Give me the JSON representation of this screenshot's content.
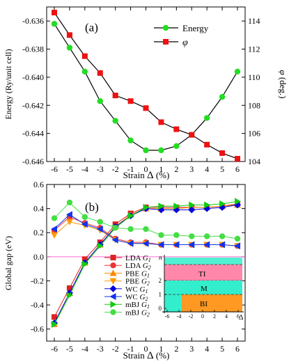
{
  "chart_data": [
    {
      "type": "line",
      "panel_label": "(a)",
      "x": [
        -6,
        -5,
        -4,
        -3,
        -2,
        -1,
        0,
        1,
        2,
        3,
        4,
        5,
        6
      ],
      "xlabel": "Strain",
      "xlabel_symbol": "Δ",
      "xlabel_unit": "(%)",
      "ylabel": "Energy (Ry/unit cell)",
      "y2label": "(deg.)",
      "y2label_symbol": "φ",
      "ylim": [
        -0.646,
        -0.635
      ],
      "yticks": [
        -0.646,
        -0.644,
        -0.642,
        -0.64,
        -0.638,
        -0.636
      ],
      "ytick_labels": [
        "-0.646",
        "-0.644",
        "-0.642",
        "-0.640",
        "-0.638",
        "-0.636"
      ],
      "y2lim": [
        104,
        115
      ],
      "y2ticks": [
        104,
        106,
        108,
        110,
        112,
        114
      ],
      "y2tick_labels": [
        "104",
        "106",
        "108",
        "110",
        "112",
        "114"
      ],
      "xtick_labels": [
        "-6",
        "-5",
        "-4",
        "-3",
        "-2",
        "-1",
        "0",
        "1",
        "2",
        "3",
        "4",
        "5",
        "6"
      ],
      "legend_position": "top-right",
      "series": [
        {
          "name": "Energy",
          "axis": "left",
          "color": "#22dd22",
          "marker": "circle",
          "values": [
            -0.6362,
            -0.6379,
            -0.6396,
            -0.6417,
            -0.6431,
            -0.6445,
            -0.6452,
            -0.6452,
            -0.6449,
            -0.6441,
            -0.6429,
            -0.6414,
            -0.6396
          ]
        },
        {
          "name": "φ",
          "axis": "right",
          "color": "#ee1111",
          "marker": "square",
          "values": [
            114.6,
            113.0,
            111.5,
            110.3,
            108.7,
            108.3,
            107.8,
            106.8,
            106.3,
            105.9,
            105.2,
            104.6,
            104.2
          ]
        }
      ]
    },
    {
      "type": "line",
      "panel_label": "(b)",
      "x": [
        -6,
        -5,
        -4,
        -3,
        -2,
        -1,
        0,
        1,
        2,
        3,
        4,
        5,
        6
      ],
      "xlabel": "Strain",
      "xlabel_symbol": "Δ",
      "xlabel_unit": "(%)",
      "ylabel": "Global gap (eV)",
      "ylim": [
        -0.7,
        0.6
      ],
      "yticks": [
        -0.6,
        -0.4,
        -0.2,
        0.0,
        0.2,
        0.4,
        0.6
      ],
      "ytick_labels": [
        "-0.6",
        "-0.4",
        "-0.2",
        "0.0",
        "0.2",
        "0.4",
        "0.6"
      ],
      "xtick_labels": [
        "-6",
        "-5",
        "-4",
        "-3",
        "-2",
        "-1",
        "0",
        "1",
        "2",
        "3",
        "4",
        "5",
        "6"
      ],
      "zero_line_color": "#ff66cc",
      "legend_position": "bottom-left",
      "series": [
        {
          "name": "LDA",
          "sub": "G",
          "idx": "1",
          "color": "#dd2222",
          "marker": "square",
          "values": [
            -0.5,
            -0.26,
            -0.02,
            0.12,
            0.27,
            0.36,
            0.41,
            0.41,
            0.41,
            0.41,
            0.41,
            0.42,
            0.44
          ]
        },
        {
          "name": "LDA",
          "sub": "G",
          "idx": "2",
          "color": "#ee3333",
          "marker": "circle",
          "values": [
            0.22,
            0.33,
            0.28,
            0.24,
            0.15,
            0.12,
            0.12,
            0.1,
            0.1,
            0.1,
            0.1,
            0.1,
            0.09
          ]
        },
        {
          "name": "PBE",
          "sub": "G",
          "idx": "1",
          "color": "#ff8800",
          "marker": "triangle-up",
          "values": [
            -0.56,
            -0.3,
            -0.05,
            0.1,
            0.25,
            0.35,
            0.4,
            0.4,
            0.4,
            0.41,
            0.41,
            0.42,
            0.43
          ]
        },
        {
          "name": "PBE",
          "sub": "G",
          "idx": "2",
          "color": "#ff9900",
          "marker": "triangle-down",
          "values": [
            0.18,
            0.29,
            0.26,
            0.22,
            0.14,
            0.11,
            0.11,
            0.1,
            0.1,
            0.1,
            0.1,
            0.1,
            0.09
          ]
        },
        {
          "name": "WC",
          "sub": "G",
          "idx": "1",
          "color": "#0000dd",
          "marker": "diamond",
          "values": [
            -0.55,
            -0.3,
            -0.05,
            0.1,
            0.25,
            0.34,
            0.4,
            0.39,
            0.39,
            0.39,
            0.4,
            0.41,
            0.43
          ]
        },
        {
          "name": "WC",
          "sub": "G",
          "idx": "2",
          "color": "#1133ee",
          "marker": "triangle-left",
          "values": [
            0.23,
            0.35,
            0.27,
            0.23,
            0.14,
            0.11,
            0.11,
            0.1,
            0.1,
            0.1,
            0.1,
            0.1,
            0.09
          ]
        },
        {
          "name": "mBJ",
          "sub": "G",
          "idx": "1",
          "color": "#11cc11",
          "marker": "triangle-right",
          "values": [
            -0.56,
            -0.32,
            -0.06,
            0.09,
            0.24,
            0.34,
            0.41,
            0.42,
            0.42,
            0.43,
            0.43,
            0.44,
            0.46
          ]
        },
        {
          "name": "mBJ",
          "sub": "G",
          "idx": "2",
          "color": "#44dd44",
          "marker": "circle",
          "values": [
            0.32,
            0.45,
            0.33,
            0.29,
            0.24,
            0.23,
            0.23,
            0.18,
            0.18,
            0.17,
            0.17,
            0.17,
            0.15
          ]
        }
      ],
      "inset": {
        "ylabel": "n",
        "xlabel": "Δ",
        "xticks": [
          -6,
          -4,
          -2,
          0,
          2,
          4,
          6
        ],
        "xtick_labels": [
          "-6",
          "-4",
          "-2",
          "0",
          "2",
          "4",
          "6"
        ],
        "yticks": [
          0,
          1,
          2
        ],
        "ytick_labels": [
          "0",
          "1",
          "2"
        ],
        "bands": [
          {
            "label": "TI",
            "color": "#ff88aa"
          },
          {
            "label": "M",
            "color": "#33eecc"
          },
          {
            "label": "BI",
            "color": "#ff9922"
          }
        ]
      }
    }
  ]
}
